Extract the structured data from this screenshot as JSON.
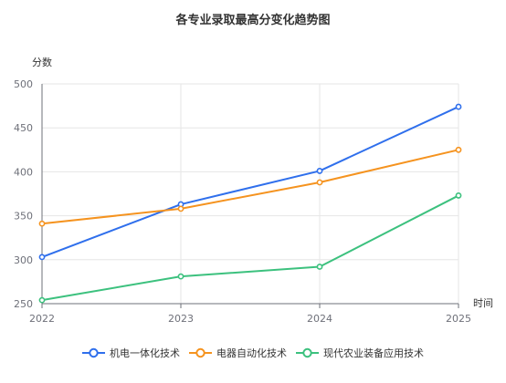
{
  "chart_data": {
    "type": "line",
    "title": "各专业录取最高分变化趋势图",
    "xlabel": "时间",
    "ylabel": "分数",
    "x": [
      "2022",
      "2023",
      "2024",
      "2025"
    ],
    "ylim": [
      250,
      500
    ],
    "yticks": [
      250,
      300,
      350,
      400,
      450,
      500
    ],
    "grid": true,
    "legend_position": "bottom",
    "series": [
      {
        "name": "机电一体化技术",
        "color": "#2f6fec",
        "values": [
          303,
          363,
          401,
          474
        ]
      },
      {
        "name": "电器自动化技术",
        "color": "#f5931f",
        "values": [
          341,
          358,
          388,
          425
        ]
      },
      {
        "name": "现代农业装备应用技术",
        "color": "#3cc17e",
        "values": [
          254,
          281,
          292,
          373
        ]
      }
    ]
  }
}
